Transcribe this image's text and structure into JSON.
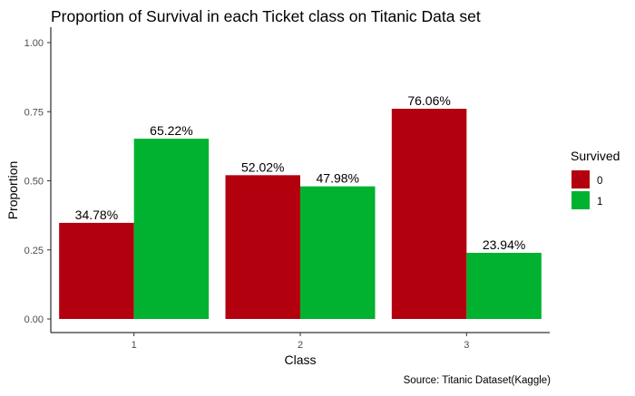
{
  "chart_data": {
    "type": "bar",
    "title": "Proportion of Survival in each Ticket class on Titanic Data set",
    "xlabel": "Class",
    "ylabel": "Proportion",
    "caption": "Source: Titanic Dataset(Kaggle)",
    "categories": [
      "1",
      "2",
      "3"
    ],
    "ylim": [
      0,
      1.0
    ],
    "yticks": [
      "0.00",
      "0.25",
      "0.50",
      "0.75",
      "1.00"
    ],
    "ytick_values": [
      0,
      0.25,
      0.5,
      0.75,
      1.0
    ],
    "legend": {
      "title": "Survived",
      "position": "right"
    },
    "grid": false,
    "series": [
      {
        "name": "0",
        "color": "#b2000f",
        "values": [
          0.3478,
          0.5202,
          0.7606
        ],
        "labels": [
          "34.78%",
          "52.02%",
          "76.06%"
        ]
      },
      {
        "name": "1",
        "color": "#00b22f",
        "values": [
          0.6522,
          0.4798,
          0.2394
        ],
        "labels": [
          "65.22%",
          "47.98%",
          "23.94%"
        ]
      }
    ]
  }
}
